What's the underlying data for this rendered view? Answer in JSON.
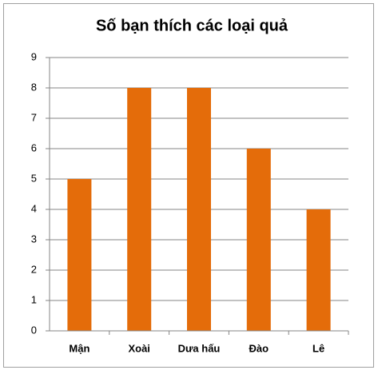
{
  "chart_data": {
    "type": "bar",
    "title": "Số bạn thích các loại quả",
    "categories": [
      "Mận",
      "Xoài",
      "Dưa hấu",
      "Đào",
      "Lê"
    ],
    "values": [
      5,
      8,
      8,
      6,
      4
    ],
    "color": "#e46c0a",
    "ylim": [
      0,
      9
    ],
    "yticks": [
      0,
      1,
      2,
      3,
      4,
      5,
      6,
      7,
      8,
      9
    ],
    "grid": true
  }
}
